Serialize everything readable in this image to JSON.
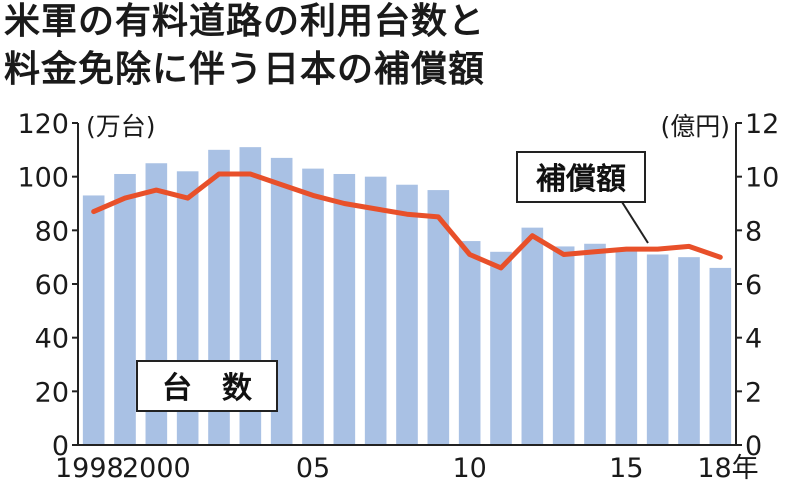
{
  "chart_data": {
    "type": "bar+line",
    "title": [
      "米軍の有料道路の利用台数と",
      "料金免除に伴う日本の補償額"
    ],
    "x": [
      1998,
      1999,
      2000,
      2001,
      2002,
      2003,
      2004,
      2005,
      2006,
      2007,
      2008,
      2009,
      2010,
      2011,
      2012,
      2013,
      2014,
      2015,
      2016,
      2017,
      2018
    ],
    "xtick_labels": [
      "1998",
      "2000",
      "05",
      "10",
      "15",
      "18年"
    ],
    "xtick_positions": [
      1998,
      2000,
      2005,
      2010,
      2015,
      2018
    ],
    "series": [
      {
        "name": "台　数",
        "axis": "left",
        "kind": "bar",
        "color": "#a9c1e4",
        "values": [
          93,
          101,
          105,
          102,
          110,
          111,
          107,
          103,
          101,
          100,
          97,
          95,
          76,
          72,
          81,
          74,
          75,
          73,
          71,
          70,
          66
        ]
      },
      {
        "name": "補償額",
        "axis": "right",
        "kind": "line",
        "color": "#e8502a",
        "values": [
          8.7,
          9.2,
          9.5,
          9.2,
          10.1,
          10.1,
          9.7,
          9.3,
          9.0,
          8.8,
          8.6,
          8.5,
          7.1,
          6.6,
          7.8,
          7.1,
          7.2,
          7.3,
          7.3,
          7.4,
          7.0
        ]
      }
    ],
    "left_axis": {
      "unit": "(万台)",
      "ylim": [
        0,
        120
      ],
      "ticks": [
        0,
        20,
        40,
        60,
        80,
        100,
        120
      ]
    },
    "right_axis": {
      "unit": "(億円)",
      "ylim": [
        0,
        12
      ],
      "ticks": [
        0,
        2,
        4,
        6,
        8,
        10,
        12
      ]
    },
    "annotations": {
      "line_label": "補償額",
      "bar_label": "台　数"
    },
    "grid": false
  }
}
